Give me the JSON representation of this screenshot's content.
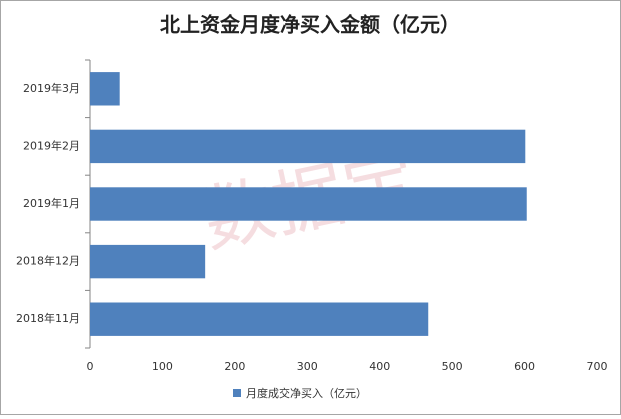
{
  "chart_data": {
    "type": "hbar",
    "title": "北上资金月度净买入金额（亿元）",
    "watermark": "数据宝",
    "categories": [
      "2019年3月",
      "2019年2月",
      "2019年1月",
      "2018年12月",
      "2018年11月"
    ],
    "series": [
      {
        "name": "月度成交净买入（亿元）",
        "color": "#4f81bd",
        "values": [
          41,
          601,
          603,
          159,
          467
        ]
      }
    ],
    "xlim": [
      0,
      700
    ],
    "xticks": [
      0,
      100,
      200,
      300,
      400,
      500,
      600,
      700
    ],
    "grid": false
  }
}
